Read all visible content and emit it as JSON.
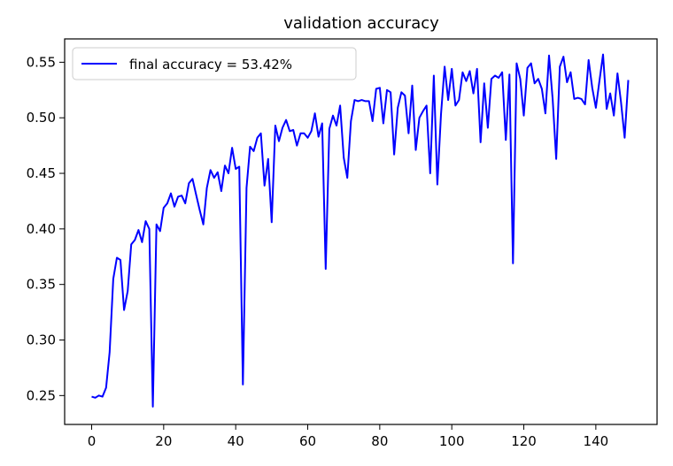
{
  "chart_data": {
    "type": "line",
    "title": "validation accuracy",
    "xlabel": "",
    "ylabel": "",
    "xlim": [
      -7.5,
      157
    ],
    "ylim": [
      0.224,
      0.571
    ],
    "xticks": [
      0,
      20,
      40,
      60,
      80,
      100,
      120,
      140
    ],
    "yticks": [
      0.25,
      0.3,
      0.35,
      0.4,
      0.45,
      0.5,
      0.55
    ],
    "xtick_labels": [
      "0",
      "20",
      "40",
      "60",
      "80",
      "100",
      "120",
      "140"
    ],
    "ytick_labels": [
      "0.25",
      "0.30",
      "0.35",
      "0.40",
      "0.45",
      "0.50",
      "0.55"
    ],
    "grid": false,
    "legend_position": "top-left",
    "series": [
      {
        "name": "final accuracy = 53.42%",
        "color": "#0000ff",
        "x": [
          0,
          1,
          2,
          3,
          4,
          5,
          6,
          7,
          8,
          9,
          10,
          11,
          12,
          13,
          14,
          15,
          16,
          17,
          18,
          19,
          20,
          21,
          22,
          23,
          24,
          25,
          26,
          27,
          28,
          29,
          30,
          31,
          32,
          33,
          34,
          35,
          36,
          37,
          38,
          39,
          40,
          41,
          42,
          43,
          44,
          45,
          46,
          47,
          48,
          49,
          50,
          51,
          52,
          53,
          54,
          55,
          56,
          57,
          58,
          59,
          60,
          61,
          62,
          63,
          64,
          65,
          66,
          67,
          68,
          69,
          70,
          71,
          72,
          73,
          74,
          75,
          76,
          77,
          78,
          79,
          80,
          81,
          82,
          83,
          84,
          85,
          86,
          87,
          88,
          89,
          90,
          91,
          92,
          93,
          94,
          95,
          96,
          97,
          98,
          99,
          100,
          101,
          102,
          103,
          104,
          105,
          106,
          107,
          108,
          109,
          110,
          111,
          112,
          113,
          114,
          115,
          116,
          117,
          118,
          119,
          120,
          121,
          122,
          123,
          124,
          125,
          126,
          127,
          128,
          129,
          130,
          131,
          132,
          133,
          134,
          135,
          136,
          137,
          138,
          139,
          140,
          141,
          142,
          143,
          144,
          145,
          146,
          147,
          148,
          149
        ],
        "y": [
          0.249,
          0.248,
          0.25,
          0.249,
          0.257,
          0.289,
          0.355,
          0.374,
          0.372,
          0.327,
          0.344,
          0.386,
          0.39,
          0.399,
          0.388,
          0.407,
          0.4,
          0.24,
          0.404,
          0.398,
          0.419,
          0.423,
          0.432,
          0.42,
          0.429,
          0.43,
          0.423,
          0.441,
          0.445,
          0.431,
          0.417,
          0.404,
          0.437,
          0.453,
          0.446,
          0.451,
          0.434,
          0.457,
          0.45,
          0.473,
          0.454,
          0.456,
          0.26,
          0.437,
          0.474,
          0.47,
          0.482,
          0.486,
          0.439,
          0.463,
          0.406,
          0.493,
          0.479,
          0.491,
          0.498,
          0.488,
          0.489,
          0.475,
          0.486,
          0.486,
          0.482,
          0.488,
          0.504,
          0.483,
          0.495,
          0.364,
          0.49,
          0.502,
          0.493,
          0.511,
          0.464,
          0.446,
          0.497,
          0.516,
          0.515,
          0.516,
          0.515,
          0.515,
          0.497,
          0.526,
          0.527,
          0.495,
          0.525,
          0.523,
          0.467,
          0.509,
          0.523,
          0.52,
          0.486,
          0.529,
          0.471,
          0.5,
          0.506,
          0.511,
          0.45,
          0.538,
          0.44,
          0.503,
          0.546,
          0.516,
          0.544,
          0.511,
          0.516,
          0.541,
          0.533,
          0.542,
          0.522,
          0.544,
          0.478,
          0.531,
          0.491,
          0.535,
          0.538,
          0.536,
          0.541,
          0.48,
          0.539,
          0.369,
          0.549,
          0.535,
          0.502,
          0.545,
          0.549,
          0.531,
          0.535,
          0.526,
          0.504,
          0.556,
          0.517,
          0.463,
          0.546,
          0.555,
          0.532,
          0.541,
          0.517,
          0.518,
          0.517,
          0.512,
          0.552,
          0.527,
          0.509,
          0.533,
          0.557,
          0.508,
          0.522,
          0.502,
          0.54,
          0.514,
          0.482,
          0.534
        ]
      }
    ]
  }
}
